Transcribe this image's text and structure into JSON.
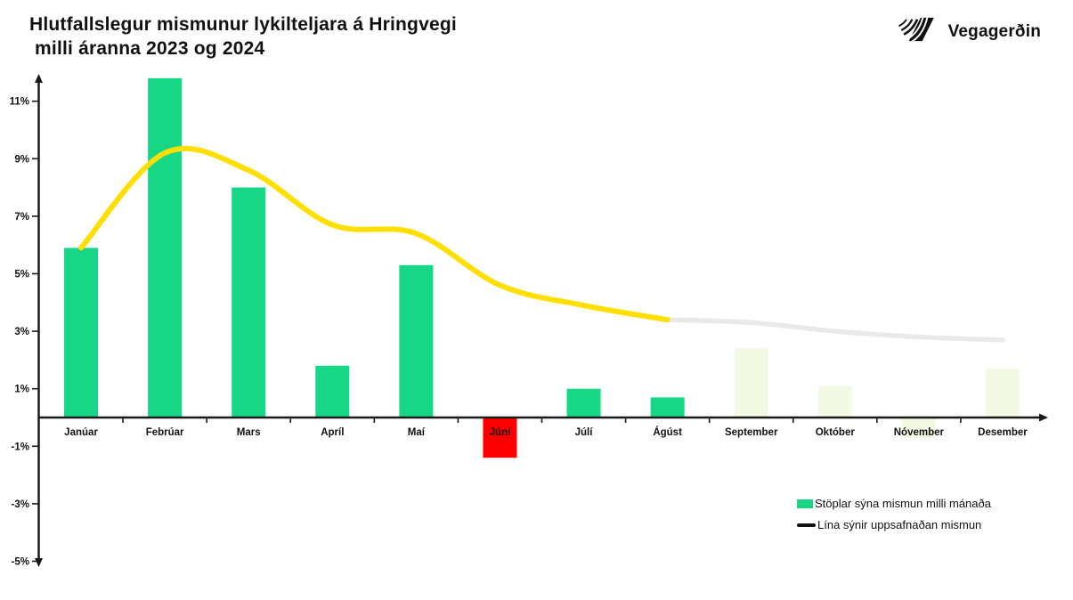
{
  "header": {
    "title_line1": "Hlutfallslegur mismunur lykilteljara á Hringvegi",
    "title_line2": " milli áranna 2023 og 2024",
    "logo_text": "Vegagerðin"
  },
  "legend": {
    "bar_label": "Stöplar sýna mismun milli mánaða",
    "line_label": "Lína sýnir uppsafnaðan mismun"
  },
  "colors": {
    "bar_positive": "#17d686",
    "bar_faded": "#f2fae3",
    "bar_negative": "#fc0000",
    "line_actual": "#ffdf00",
    "line_projected": "#e9e9e9",
    "axis": "#1a1a1a",
    "text": "#111111",
    "legend_line_swatch": "#111111"
  },
  "chart_data": {
    "type": "bar",
    "title": "Hlutfallslegur mismunur lykilteljara á Hringvegi milli áranna 2023 og 2024",
    "categories": [
      "Janúar",
      "Febrúar",
      "Mars",
      "Apríl",
      "Maí",
      "Júní",
      "Júlí",
      "Ágúst",
      "September",
      "Október",
      "Nóvember",
      "Desember"
    ],
    "series": [
      {
        "name": "Stöplar sýna mismun milli mánaða",
        "type": "bar",
        "values": [
          5.9,
          11.8,
          8.0,
          1.8,
          5.3,
          -1.4,
          1.0,
          0.7,
          2.4,
          1.1,
          -0.7,
          1.7
        ],
        "styles": [
          "solid",
          "solid",
          "solid",
          "solid",
          "solid",
          "negative",
          "solid",
          "solid",
          "faded",
          "faded",
          "faded",
          "faded"
        ]
      },
      {
        "name": "Lína sýnir uppsafnaðan mismun",
        "type": "line",
        "values": [
          5.9,
          9.2,
          8.6,
          6.7,
          6.4,
          4.6,
          3.9,
          3.4,
          3.3,
          3.0,
          2.8,
          2.7
        ],
        "solid_until_index": 7
      }
    ],
    "xlabel": "",
    "ylabel": "",
    "ylim": [
      -5,
      12
    ],
    "yticks": [
      {
        "v": 11,
        "label": "11%"
      },
      {
        "v": 9,
        "label": "9%"
      },
      {
        "v": 7,
        "label": "7%"
      },
      {
        "v": 5,
        "label": "5%"
      },
      {
        "v": 3,
        "label": "3%"
      },
      {
        "v": 1,
        "label": "1%"
      },
      {
        "v": -1,
        "label": "-1%"
      },
      {
        "v": -3,
        "label": "-3%"
      },
      {
        "v": -5,
        "label": "-5%"
      }
    ],
    "grid": false,
    "legend_position": "bottom-right"
  }
}
